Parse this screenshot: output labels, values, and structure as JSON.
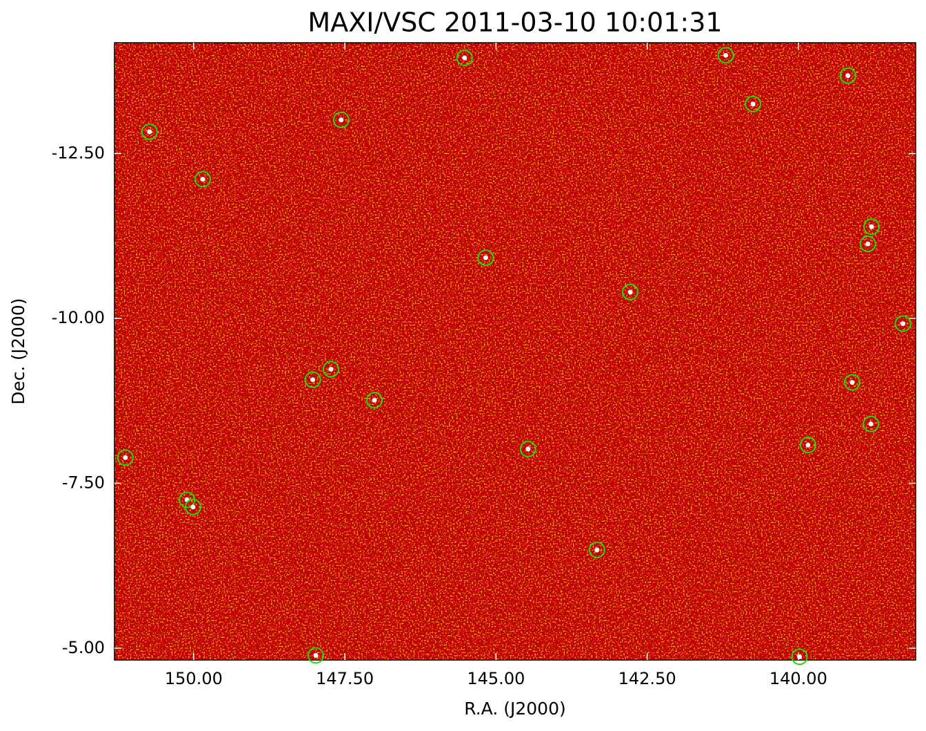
{
  "chart_data": {
    "type": "scatter",
    "title": "MAXI/VSC 2011-03-10 10:01:31",
    "x_label": "R.A. (J2000)",
    "y_label": "Dec. (J2000)",
    "x": [
      145.52,
      141.2,
      139.18,
      140.75,
      147.56,
      150.73,
      149.85,
      138.79,
      138.85,
      145.17,
      142.78,
      138.27,
      147.73,
      148.03,
      139.11,
      147.01,
      138.8,
      139.84,
      144.47,
      151.13,
      150.11,
      150.01,
      143.33,
      147.98,
      139.98
    ],
    "values": [
      -13.95,
      -13.99,
      -13.68,
      -13.25,
      -13.01,
      -12.83,
      -12.11,
      -11.39,
      -11.13,
      -10.92,
      -10.4,
      -9.92,
      -9.23,
      -9.07,
      -9.03,
      -8.76,
      -8.4,
      -8.08,
      -8.02,
      -7.89,
      -7.25,
      -7.14,
      -6.49,
      -4.89,
      -4.87
    ],
    "color": "#22dd00",
    "background_color": "#c00000",
    "xlim": [
      151.31,
      138.06
    ],
    "ylim": [
      -4.82,
      -14.18
    ],
    "xticks": [
      {
        "value": 150,
        "label": "150.00"
      },
      {
        "value": 147.5,
        "label": "147.50"
      },
      {
        "value": 145,
        "label": "145.00"
      },
      {
        "value": 142.5,
        "label": "142.50"
      },
      {
        "value": 140,
        "label": "140.00"
      }
    ],
    "yticks": [
      {
        "value": -12.5,
        "label": "-12.50"
      },
      {
        "value": -10,
        "label": "-10.00"
      },
      {
        "value": -7.5,
        "label": "-7.50"
      },
      {
        "value": -5,
        "label": "-5.00"
      }
    ]
  }
}
